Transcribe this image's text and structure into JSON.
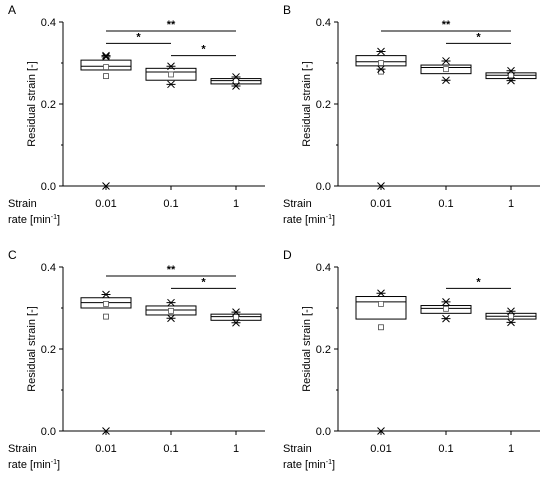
{
  "figure": {
    "panels": [
      "A",
      "B",
      "C",
      "D"
    ]
  },
  "chart_data": [
    {
      "panel": "A",
      "type": "box",
      "ylabel": "Residual strain [-]",
      "xlabel_line1": "Strain",
      "xlabel_line2": "rate [min",
      "xlabel_sup": "-1",
      "xlabel_close": "]",
      "categories": [
        "0.01",
        "0.1",
        "1"
      ],
      "yticks": [
        "0.0",
        "0.2",
        "0.4"
      ],
      "ylim": [
        0,
        0.4
      ],
      "boxes": [
        {
          "q1": 0.283,
          "median": 0.292,
          "q3": 0.307,
          "mean": 0.29,
          "outlier": 0.268,
          "min": 0.0,
          "max": 0.318,
          "crosses": [
            0.0,
            0.315,
            0.318
          ]
        },
        {
          "q1": 0.258,
          "median": 0.278,
          "q3": 0.287,
          "mean": 0.272,
          "outlier": null,
          "min": 0.248,
          "max": 0.292,
          "crosses": [
            0.248,
            0.292
          ]
        },
        {
          "q1": 0.249,
          "median": 0.257,
          "q3": 0.262,
          "mean": 0.256,
          "outlier": null,
          "min": 0.244,
          "max": 0.268,
          "crosses": [
            0.244,
            0.266
          ]
        }
      ],
      "significance": [
        {
          "from": 0,
          "to": 2,
          "y": 0.378,
          "label": "**"
        },
        {
          "from": 0,
          "to": 1,
          "y": 0.348,
          "label": "*"
        },
        {
          "from": 1,
          "to": 2,
          "y": 0.318,
          "label": "*"
        }
      ]
    },
    {
      "panel": "B",
      "type": "box",
      "ylabel": "Residual strain [-]",
      "xlabel_line1": "Strain",
      "xlabel_line2": "rate [min",
      "xlabel_sup": "-1",
      "xlabel_close": "]",
      "categories": [
        "0.01",
        "0.1",
        "1"
      ],
      "yticks": [
        "0.0",
        "0.2",
        "0.4"
      ],
      "ylim": [
        0,
        0.4
      ],
      "boxes": [
        {
          "q1": 0.293,
          "median": 0.303,
          "q3": 0.318,
          "mean": 0.3,
          "outlier": 0.279,
          "min": 0.0,
          "max": 0.33,
          "crosses": [
            0.0,
            0.285,
            0.328
          ]
        },
        {
          "q1": 0.274,
          "median": 0.289,
          "q3": 0.295,
          "mean": 0.285,
          "outlier": null,
          "min": 0.258,
          "max": 0.305,
          "crosses": [
            0.258,
            0.305
          ]
        },
        {
          "q1": 0.262,
          "median": 0.27,
          "q3": 0.276,
          "mean": 0.27,
          "outlier": null,
          "min": 0.257,
          "max": 0.281,
          "crosses": [
            0.257,
            0.281
          ]
        }
      ],
      "significance": [
        {
          "from": 0,
          "to": 2,
          "y": 0.378,
          "label": "**"
        },
        {
          "from": 1,
          "to": 2,
          "y": 0.348,
          "label": "*"
        }
      ]
    },
    {
      "panel": "C",
      "type": "box",
      "ylabel": "Residual strain [-]",
      "xlabel_line1": "Strain",
      "xlabel_line2": "rate [min",
      "xlabel_sup": "-1",
      "xlabel_close": "]",
      "categories": [
        "0.01",
        "0.1",
        "1"
      ],
      "yticks": [
        "0.0",
        "0.2",
        "0.4"
      ],
      "ylim": [
        0,
        0.4
      ],
      "boxes": [
        {
          "q1": 0.3,
          "median": 0.313,
          "q3": 0.325,
          "mean": 0.31,
          "outlier": 0.279,
          "min": 0.0,
          "max": 0.335,
          "crosses": [
            0.0,
            0.333
          ]
        },
        {
          "q1": 0.283,
          "median": 0.295,
          "q3": 0.305,
          "mean": 0.293,
          "outlier": null,
          "min": 0.275,
          "max": 0.315,
          "crosses": [
            0.275,
            0.313
          ]
        },
        {
          "q1": 0.27,
          "median": 0.279,
          "q3": 0.285,
          "mean": 0.278,
          "outlier": null,
          "min": 0.264,
          "max": 0.29,
          "crosses": [
            0.264,
            0.29
          ]
        }
      ],
      "significance": [
        {
          "from": 0,
          "to": 2,
          "y": 0.378,
          "label": "**"
        },
        {
          "from": 1,
          "to": 2,
          "y": 0.348,
          "label": "*"
        }
      ]
    },
    {
      "panel": "D",
      "type": "box",
      "ylabel": "Residual strain [-]",
      "xlabel_line1": "Strain",
      "xlabel_line2": "rate [min",
      "xlabel_sup": "-1",
      "xlabel_close": "]",
      "categories": [
        "0.01",
        "0.1",
        "1"
      ],
      "yticks": [
        "0.0",
        "0.2",
        "0.4"
      ],
      "ylim": [
        0,
        0.4
      ],
      "boxes": [
        {
          "q1": 0.273,
          "median": 0.315,
          "q3": 0.328,
          "mean": 0.31,
          "outlier": 0.253,
          "min": 0.0,
          "max": 0.338,
          "crosses": [
            0.0,
            0.336
          ]
        },
        {
          "q1": 0.287,
          "median": 0.299,
          "q3": 0.306,
          "mean": 0.298,
          "outlier": null,
          "min": 0.274,
          "max": 0.318,
          "crosses": [
            0.274,
            0.315
          ]
        },
        {
          "q1": 0.273,
          "median": 0.28,
          "q3": 0.287,
          "mean": 0.28,
          "outlier": null,
          "min": 0.265,
          "max": 0.293,
          "crosses": [
            0.265,
            0.292
          ]
        }
      ],
      "significance": [
        {
          "from": 1,
          "to": 2,
          "y": 0.348,
          "label": "*"
        }
      ]
    }
  ]
}
